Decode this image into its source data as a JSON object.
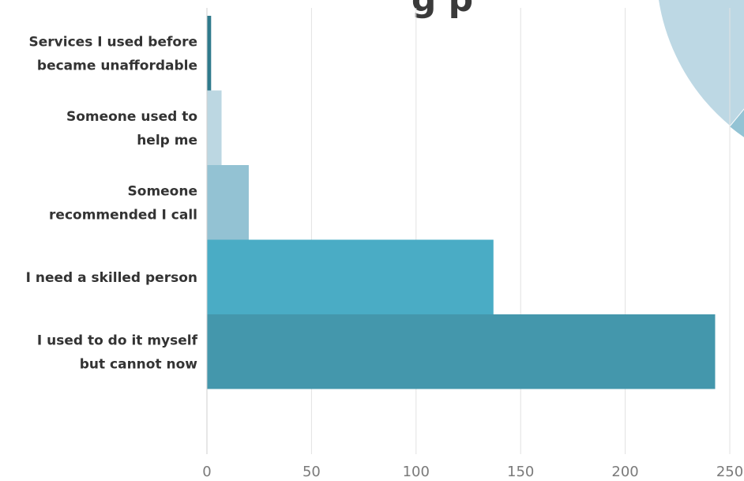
{
  "title_fragment": "g p",
  "chart_data": {
    "type": "bar",
    "orientation": "horizontal",
    "categories": [
      [
        "Services I used before",
        "became unaffordable"
      ],
      [
        "Someone used to",
        "help me"
      ],
      [
        "Someone",
        "recommended I call"
      ],
      [
        "I need a skilled person"
      ],
      [
        "I used to do it myself",
        "but cannot now"
      ]
    ],
    "values": [
      2,
      7,
      20,
      137,
      243
    ],
    "bar_colors": [
      "#2f7a8c",
      "#bcd7e2",
      "#93c2d3",
      "#4aacc5",
      "#4497ac"
    ],
    "xlim": [
      0,
      250
    ],
    "x_ticks": [
      0,
      50,
      100,
      150,
      200,
      250
    ],
    "grid": true,
    "xlabel": "",
    "ylabel": ""
  },
  "decor": {
    "pie_colors": [
      "#bdd8e4",
      "#93c3d4"
    ]
  }
}
